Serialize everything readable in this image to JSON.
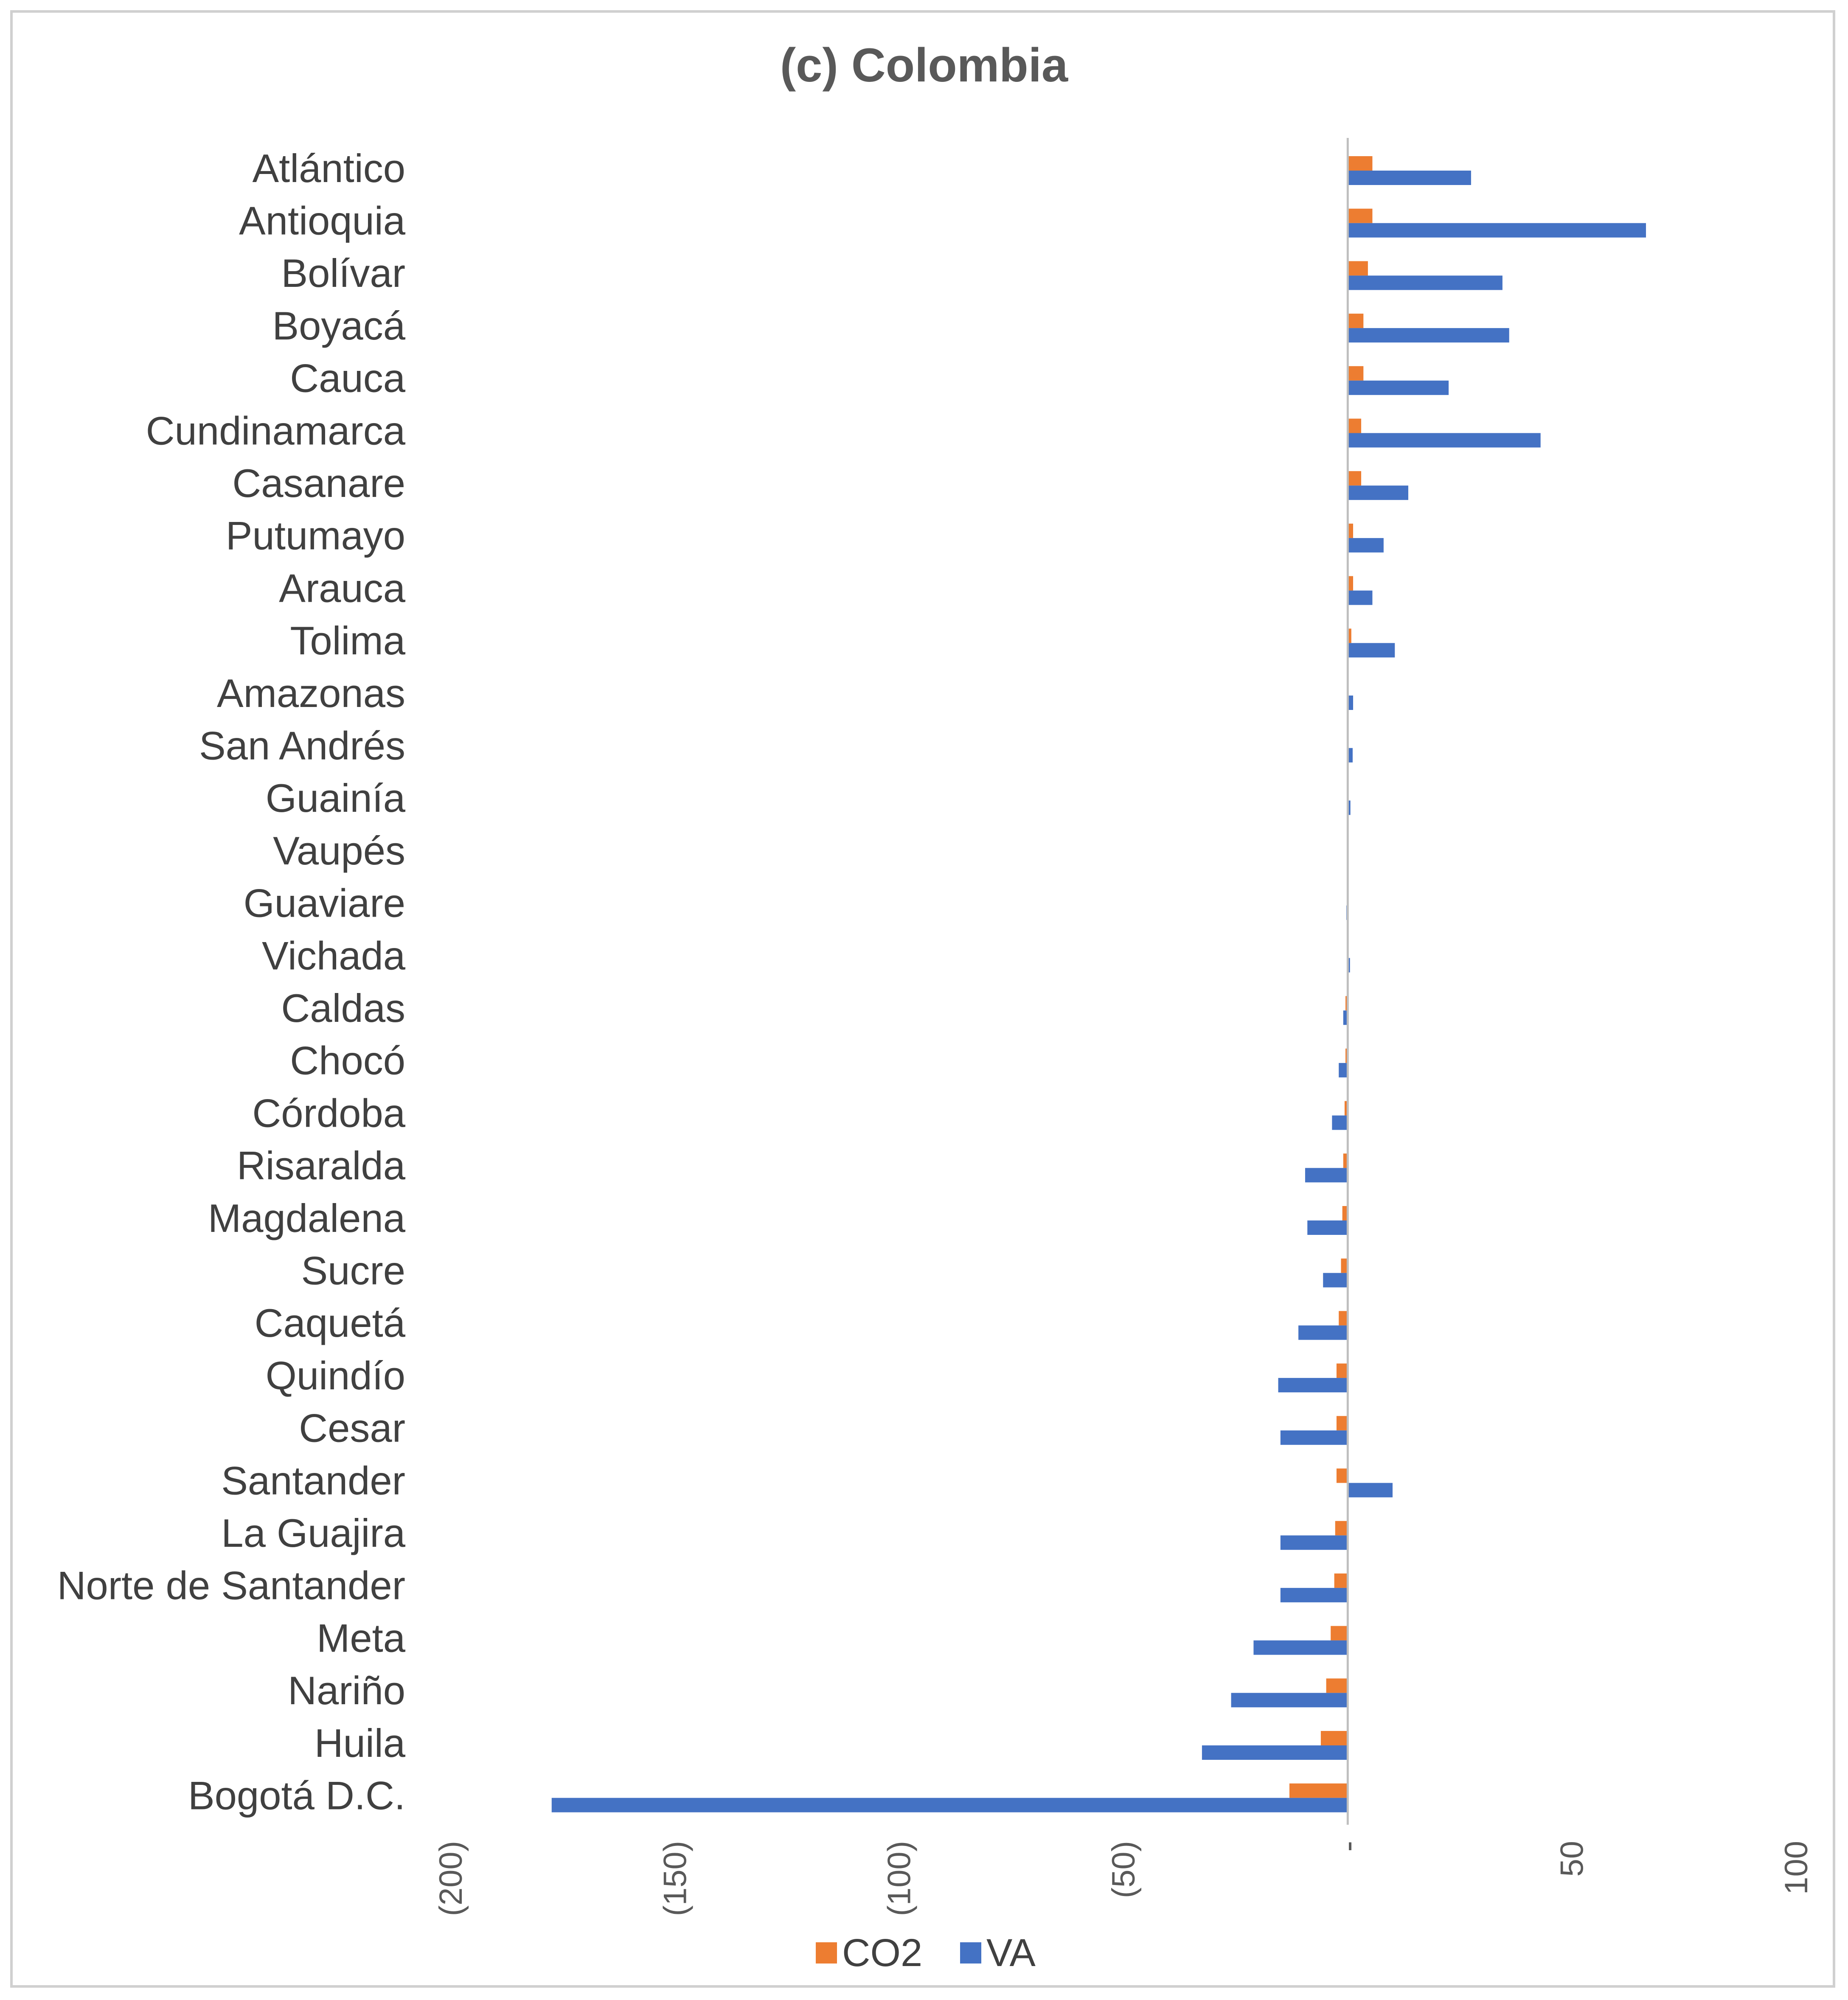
{
  "chart_data": {
    "type": "bar",
    "orientation": "horizontal",
    "title": "(c) Colombia",
    "xlabel": "",
    "ylabel": "",
    "xlim": [
      -200,
      100
    ],
    "x_ticks": [
      -200,
      -150,
      -100,
      -50,
      0,
      50,
      100
    ],
    "x_tick_labels": [
      "(200)",
      "(150)",
      "(100)",
      "(50)",
      "-",
      "50",
      "100"
    ],
    "grid": false,
    "legend_position": "bottom",
    "categories": [
      "Atlántico",
      "Antioquia",
      "Bolívar",
      "Boyacá",
      "Cauca",
      "Cundinamarca",
      "Casanare",
      "Putumayo",
      "Arauca",
      "Tolima",
      "Amazonas",
      "San Andrés",
      "Guainía",
      "Vaupés",
      "Guaviare",
      "Vichada",
      "Caldas",
      "Chocó",
      "Córdoba",
      "Risaralda",
      "Magdalena",
      "Sucre",
      "Caquetá",
      "Quindío",
      "Cesar",
      "Santander",
      "La Guajira",
      "Norte de Santander",
      "Meta",
      "Nariño",
      "Huila",
      "Bogotá D.C."
    ],
    "series": [
      {
        "name": "CO2",
        "color": "#ED7D31",
        "values": [
          5.5,
          5.5,
          4.5,
          3.5,
          3.5,
          3,
          3,
          1.2,
          1.2,
          0.8,
          0,
          0,
          0,
          0,
          0,
          0,
          -0.5,
          -0.5,
          -0.7,
          -1,
          -1.2,
          -1.5,
          -2,
          -2.5,
          -2.5,
          -2.5,
          -2.8,
          -3,
          -3.8,
          -4.8,
          -6,
          -13
        ]
      },
      {
        "name": "VA",
        "color": "#4472C4",
        "values": [
          27.5,
          66.5,
          34.5,
          36,
          22.5,
          43,
          13.5,
          8,
          5.5,
          10.5,
          1.2,
          1.1,
          0.6,
          0.1,
          -0.3,
          0.5,
          -1,
          -2,
          -3.5,
          -9.5,
          -9,
          -5.5,
          -11,
          -15.5,
          -15,
          10,
          -15,
          -15,
          -21,
          -26,
          -32.5,
          -177.5
        ]
      }
    ]
  }
}
